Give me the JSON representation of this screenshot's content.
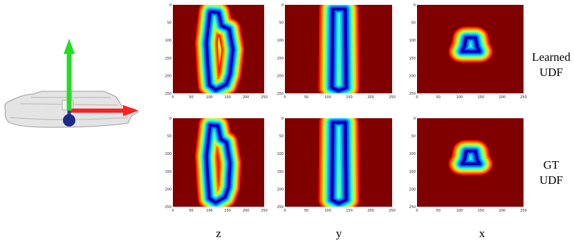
{
  "row_labels": [
    [
      "Learned",
      "UDF"
    ],
    [
      "GT",
      "UDF"
    ]
  ],
  "column_labels": [
    "z",
    "y",
    "x"
  ],
  "ticks": [
    "0",
    "50",
    "100",
    "150",
    "200",
    "250"
  ]
}
